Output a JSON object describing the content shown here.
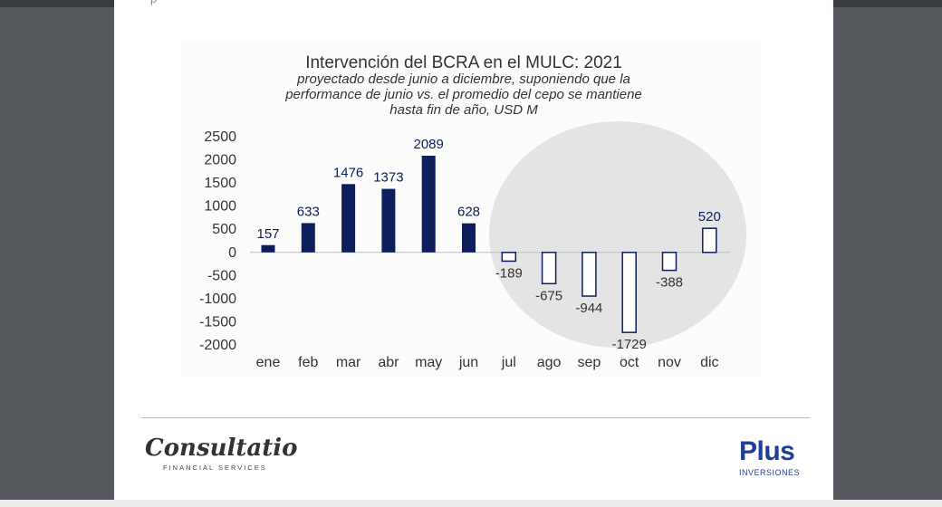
{
  "page": {
    "top_cut_text": "· p"
  },
  "chart_data": {
    "type": "bar",
    "title": "Intervención del BCRA en el MULC: 2021",
    "subtitle_lines": [
      "proyectado desde junio a diciembre, suponiendo que la",
      "performance de junio vs. el promedio del cepo se mantiene",
      "hasta fin de año, USD M"
    ],
    "categories": [
      "ene",
      "feb",
      "mar",
      "abr",
      "may",
      "jun",
      "jul",
      "ago",
      "sep",
      "oct",
      "nov",
      "dic"
    ],
    "values": [
      157,
      633,
      1476,
      1373,
      2089,
      628,
      -189,
      -675,
      -944,
      -1729,
      -388,
      520
    ],
    "projected": [
      false,
      false,
      false,
      false,
      false,
      false,
      true,
      true,
      true,
      true,
      true,
      true
    ],
    "ylim": [
      -2000,
      2500
    ],
    "yticks": [
      2500,
      2000,
      1500,
      1000,
      500,
      0,
      -500,
      -1000,
      -1500,
      -2000
    ],
    "xlabel": "",
    "ylabel": "",
    "grid": false,
    "colors": {
      "actual": "#0c1f5c",
      "projected_stroke": "#0c1f5c",
      "projected_fill": "#ffffff",
      "highlight_circle": "#e4e4e4",
      "axis_text": "#333333",
      "label_text": "#0c1f5c"
    }
  },
  "footer": {
    "left_logo_name": "Consultatio",
    "left_logo_sub": "FINANCIAL SERVICES",
    "right_logo_name": "Plus",
    "right_logo_sub": "INVERSIONES"
  }
}
